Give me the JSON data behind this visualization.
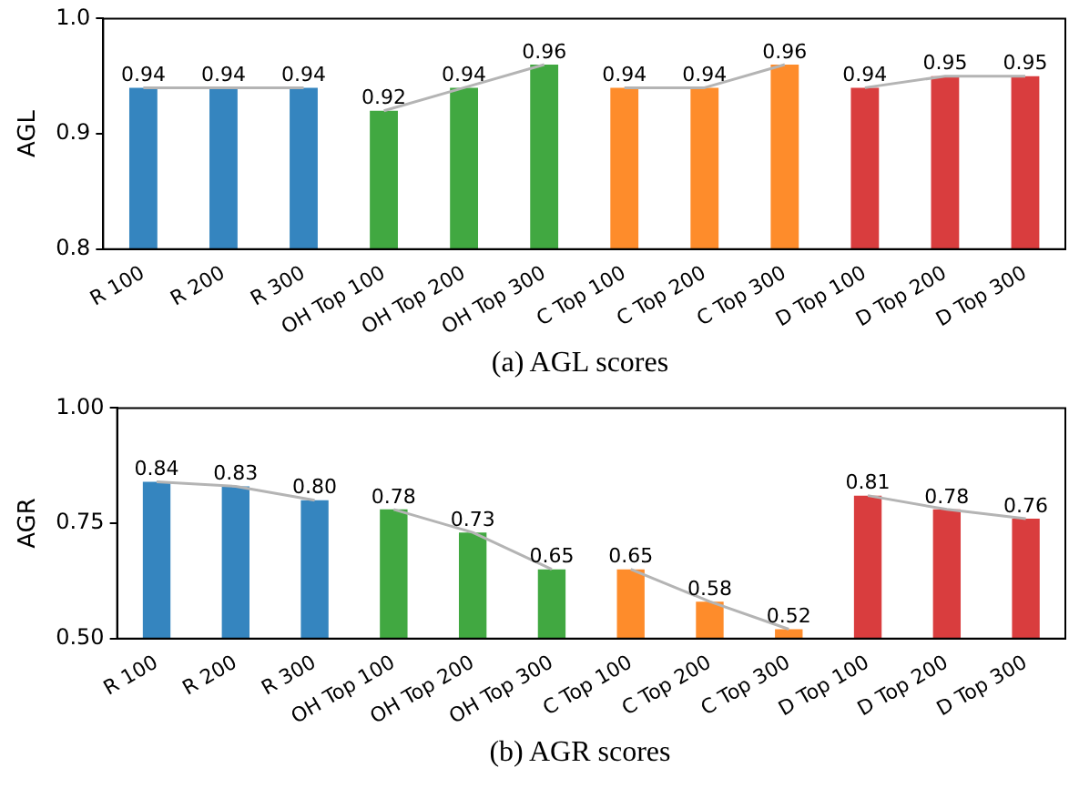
{
  "chart_data": [
    {
      "type": "bar",
      "ylabel": "AGL",
      "annotations": [
        "(a) AGL scores"
      ],
      "categories": [
        "R 100",
        "R 200",
        "R 300",
        "OH Top 100",
        "OH Top 200",
        "OH Top 300",
        "C Top 100",
        "C Top 200",
        "C Top 300",
        "D Top 100",
        "D Top 200",
        "D Top 300"
      ],
      "series": [
        {
          "values": [
            0.94,
            0.94,
            0.94,
            0.92,
            0.94,
            0.96,
            0.94,
            0.94,
            0.96,
            0.94,
            0.95,
            0.95
          ],
          "colors": [
            "#3585bf",
            "#3585bf",
            "#3585bf",
            "#41a841",
            "#41a841",
            "#41a841",
            "#fe8c2b",
            "#fe8c2b",
            "#fe8c2b",
            "#d93d3e",
            "#d93d3e",
            "#d93d3e"
          ],
          "value_labels": [
            "0.94",
            "0.94",
            "0.94",
            "0.92",
            "0.94",
            "0.96",
            "0.94",
            "0.94",
            "0.96",
            "0.94",
            "0.95",
            "0.95"
          ]
        },
        {
          "type": "line",
          "x": [
            "R 100",
            "R 200",
            "R 300"
          ],
          "values": [
            0.94,
            0.94,
            0.94
          ],
          "color": "#b4b4b4"
        },
        {
          "type": "line",
          "x": [
            "OH Top 100",
            "OH Top 200",
            "OH Top 300"
          ],
          "values": [
            0.92,
            0.94,
            0.96
          ],
          "color": "#b4b4b4"
        },
        {
          "type": "line",
          "x": [
            "C Top 100",
            "C Top 200",
            "C Top 300"
          ],
          "values": [
            0.94,
            0.94,
            0.96
          ],
          "color": "#b4b4b4"
        },
        {
          "type": "line",
          "x": [
            "D Top 100",
            "D Top 200",
            "D Top 300"
          ],
          "values": [
            0.94,
            0.95,
            0.95
          ],
          "color": "#b4b4b4"
        }
      ],
      "ylim": [
        0.8,
        1.0
      ],
      "yticks": [
        0.8,
        0.9,
        {
          "value": 1,
          "label": "1.0"
        }
      ],
      "grid": false,
      "legend": false
    },
    {
      "type": "bar",
      "ylabel": "AGR",
      "annotations": [
        "(b) AGR scores"
      ],
      "categories": [
        "R 100",
        "R 200",
        "R 300",
        "OH Top 100",
        "OH Top 200",
        "OH Top 300",
        "C Top 100",
        "C Top 200",
        "C Top 300",
        "D Top 100",
        "D Top 200",
        "D Top 300"
      ],
      "series": [
        {
          "values": [
            0.84,
            0.83,
            0.8,
            0.78,
            0.73,
            0.65,
            0.65,
            0.58,
            0.52,
            0.81,
            0.78,
            0.76
          ],
          "colors": [
            "#3585bf",
            "#3585bf",
            "#3585bf",
            "#41a841",
            "#41a841",
            "#41a841",
            "#fe8c2b",
            "#fe8c2b",
            "#fe8c2b",
            "#d93d3e",
            "#d93d3e",
            "#d93d3e"
          ],
          "value_labels": [
            "0.84",
            "0.83",
            "0.80",
            "0.78",
            "0.73",
            "0.65",
            "0.65",
            "0.58",
            "0.52",
            "0.81",
            "0.78",
            "0.76"
          ]
        },
        {
          "type": "line",
          "x": [
            "R 100",
            "R 200",
            "R 300"
          ],
          "values": [
            0.84,
            0.83,
            0.8
          ],
          "color": "#b4b4b4"
        },
        {
          "type": "line",
          "x": [
            "OH Top 100",
            "OH Top 200",
            "OH Top 300"
          ],
          "values": [
            0.78,
            0.73,
            0.65
          ],
          "color": "#b4b4b4"
        },
        {
          "type": "line",
          "x": [
            "C Top 100",
            "C Top 200",
            "C Top 300"
          ],
          "values": [
            0.65,
            0.58,
            0.52
          ],
          "color": "#b4b4b4"
        },
        {
          "type": "line",
          "x": [
            "D Top 100",
            "D Top 200",
            "D Top 300"
          ],
          "values": [
            0.81,
            0.78,
            0.76
          ],
          "color": "#b4b4b4"
        }
      ],
      "ylim": [
        0.5,
        1.0
      ],
      "yticks": [
        {
          "value": 0.5,
          "label": "0.50"
        },
        {
          "value": 0.75,
          "label": "0.75"
        },
        {
          "value": 1,
          "label": "1.00"
        }
      ],
      "grid": false,
      "legend": false
    }
  ]
}
